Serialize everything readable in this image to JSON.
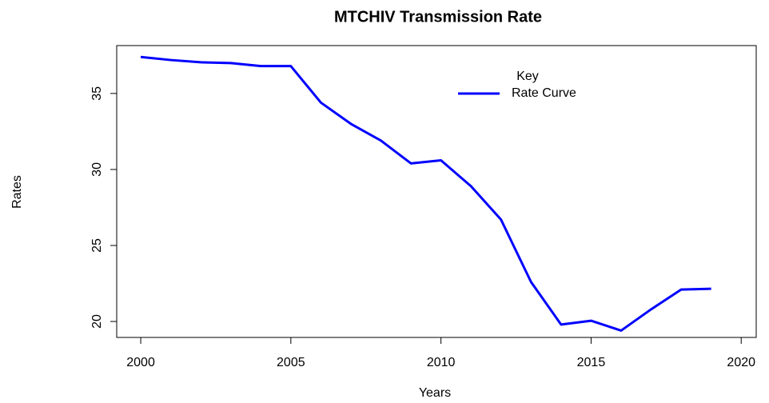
{
  "chart_data": {
    "type": "line",
    "title": "MTCHIV Transmission Rate",
    "x_label": "Years",
    "y_label": "Rates",
    "x": [
      2000,
      2001,
      2002,
      2003,
      2004,
      2005,
      2006,
      2007,
      2008,
      2009,
      2010,
      2011,
      2012,
      2013,
      2014,
      2015,
      2016,
      2017,
      2018,
      2019
    ],
    "series": [
      {
        "name": "Rate Curve",
        "color": "#0000ff",
        "values": [
          37.4,
          37.2,
          37.05,
          37.0,
          36.8,
          36.8,
          34.4,
          33.0,
          31.9,
          30.4,
          30.6,
          28.9,
          26.7,
          22.6,
          19.8,
          20.05,
          19.4,
          20.8,
          22.1,
          22.15
        ]
      }
    ],
    "legend_title": "Key",
    "xlim": [
      1999.2,
      2020.5
    ],
    "xticks": [
      2000,
      2005,
      2010,
      2015,
      2020
    ],
    "ylim": [
      18.95,
      38.15
    ],
    "yticks": [
      20,
      25,
      30,
      35
    ]
  }
}
